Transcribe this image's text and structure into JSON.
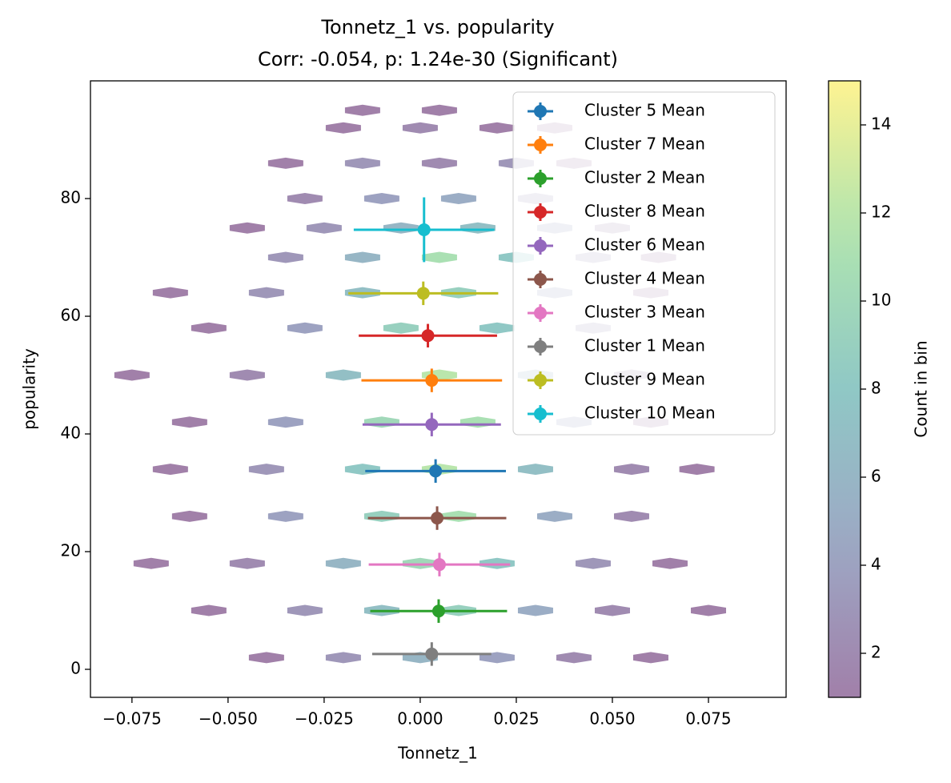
{
  "chart_data": {
    "type": "hexbin_errorbar",
    "title": "Tonnetz_1 vs. popularity",
    "subtitle": "Corr: -0.054, p: 1.24e-30 (Significant)",
    "x_label": "Tonnetz_1",
    "y_label": "popularity",
    "colorbar_label": "Count in bin",
    "xlim": [
      -0.0858,
      0.0952
    ],
    "ylim": [
      -4.76,
      100
    ],
    "clim": [
      1,
      15
    ],
    "xticks": [
      {
        "value": -0.075,
        "label": "−0.075"
      },
      {
        "value": -0.05,
        "label": "−0.050"
      },
      {
        "value": -0.025,
        "label": "−0.025"
      },
      {
        "value": 0,
        "label": "0.000"
      },
      0.025,
      {
        "value": 0.05,
        "label": "0.050"
      },
      0.075
    ],
    "yticks": [
      0,
      20,
      40,
      60,
      80
    ],
    "cticks": [
      2,
      4,
      6,
      8,
      10,
      12,
      14
    ],
    "legend": "upper right",
    "hexbin": {
      "x": [
        -0.04,
        -0.02,
        0,
        0.02,
        0.04,
        0.06,
        -0.055,
        -0.03,
        -0.01,
        0.01,
        0.03,
        0.05,
        0.075,
        -0.07,
        -0.045,
        -0.02,
        0,
        0.02,
        0.045,
        0.065,
        -0.06,
        -0.035,
        -0.01,
        0.01,
        0.035,
        0.055,
        -0.065,
        -0.04,
        -0.015,
        0.005,
        0.03,
        0.055,
        0.072,
        -0.06,
        -0.035,
        -0.01,
        0.015,
        0.04,
        0.06,
        -0.075,
        -0.045,
        -0.02,
        0.005,
        0.03,
        0.055,
        -0.055,
        -0.03,
        -0.005,
        0.02,
        0.045,
        -0.065,
        -0.04,
        -0.015,
        0.01,
        0.035,
        0.06,
        -0.035,
        -0.015,
        0.005,
        0.025,
        0.045,
        0.062,
        -0.045,
        -0.025,
        -0.005,
        0.015,
        0.035,
        0.05,
        -0.03,
        -0.01,
        0.01,
        0.03,
        -0.035,
        -0.015,
        0.005,
        0.025,
        0.04,
        -0.02,
        0,
        0.02,
        0.035,
        -0.015,
        0.005
      ],
      "y": [
        2,
        2,
        2,
        2,
        2,
        2,
        10,
        10,
        10,
        10,
        10,
        10,
        10,
        18,
        18,
        18,
        18,
        18,
        18,
        18,
        26,
        26,
        26,
        26,
        26,
        26,
        34,
        34,
        34,
        34,
        34,
        34,
        34,
        42,
        42,
        42,
        42,
        42,
        42,
        50,
        50,
        50,
        50,
        50,
        50,
        58,
        58,
        58,
        58,
        58,
        64,
        64,
        64,
        64,
        64,
        64,
        70,
        70,
        70,
        70,
        70,
        70,
        75,
        75,
        75,
        75,
        75,
        75,
        80,
        80,
        80,
        80,
        86,
        86,
        86,
        86,
        86,
        92,
        92,
        92,
        92,
        95,
        95
      ],
      "counts": [
        1,
        3,
        6,
        4,
        2,
        1,
        1,
        3,
        7,
        9,
        5,
        2,
        1,
        1,
        2,
        6,
        10,
        8,
        3,
        1,
        1,
        4,
        9,
        11,
        5,
        2,
        1,
        3,
        8,
        12,
        7,
        2,
        1,
        1,
        4,
        10,
        11,
        4,
        1,
        1,
        2,
        7,
        12,
        6,
        2,
        1,
        4,
        9,
        8,
        3,
        1,
        3,
        7,
        9,
        4,
        1,
        3,
        6,
        11,
        8,
        3,
        1,
        1,
        3,
        6,
        7,
        4,
        2,
        2,
        4,
        5,
        3,
        1,
        3,
        2,
        3,
        1,
        1,
        2,
        1,
        1,
        1,
        1
      ]
    },
    "series": [
      {
        "name": "Cluster 5 Mean",
        "color": "#1f77b4",
        "x": 0.004,
        "y": 33.7,
        "xerr": 0.0183,
        "yerr": 2.0
      },
      {
        "name": "Cluster 7 Mean",
        "color": "#ff7f0e",
        "x": 0.003,
        "y": 49.1,
        "xerr": 0.0183,
        "yerr": 2.0
      },
      {
        "name": "Cluster 2 Mean",
        "color": "#2ca02c",
        "x": 0.0048,
        "y": 9.9,
        "xerr": 0.0178,
        "yerr": 2.0
      },
      {
        "name": "Cluster 8 Mean",
        "color": "#d62728",
        "x": 0.002,
        "y": 56.7,
        "xerr": 0.018,
        "yerr": 2.0
      },
      {
        "name": "Cluster 6 Mean",
        "color": "#9467bd",
        "x": 0.003,
        "y": 41.6,
        "xerr": 0.018,
        "yerr": 2.0
      },
      {
        "name": "Cluster 4 Mean",
        "color": "#8c564b",
        "x": 0.0044,
        "y": 25.7,
        "xerr": 0.018,
        "yerr": 2.0
      },
      {
        "name": "Cluster 3 Mean",
        "color": "#e377c2",
        "x": 0.005,
        "y": 17.8,
        "xerr": 0.0184,
        "yerr": 2.0
      },
      {
        "name": "Cluster 1 Mean",
        "color": "#7f7f7f",
        "x": 0.003,
        "y": 2.6,
        "xerr": 0.0155,
        "yerr": 2.0
      },
      {
        "name": "Cluster 9 Mean",
        "color": "#bcbd22",
        "x": 0.0008,
        "y": 63.9,
        "xerr": 0.0195,
        "yerr": 2.0
      },
      {
        "name": "Cluster 10 Mean",
        "color": "#17becf",
        "x": 0.001,
        "y": 74.7,
        "xerr": 0.0183,
        "yerr": 5.5
      }
    ]
  }
}
